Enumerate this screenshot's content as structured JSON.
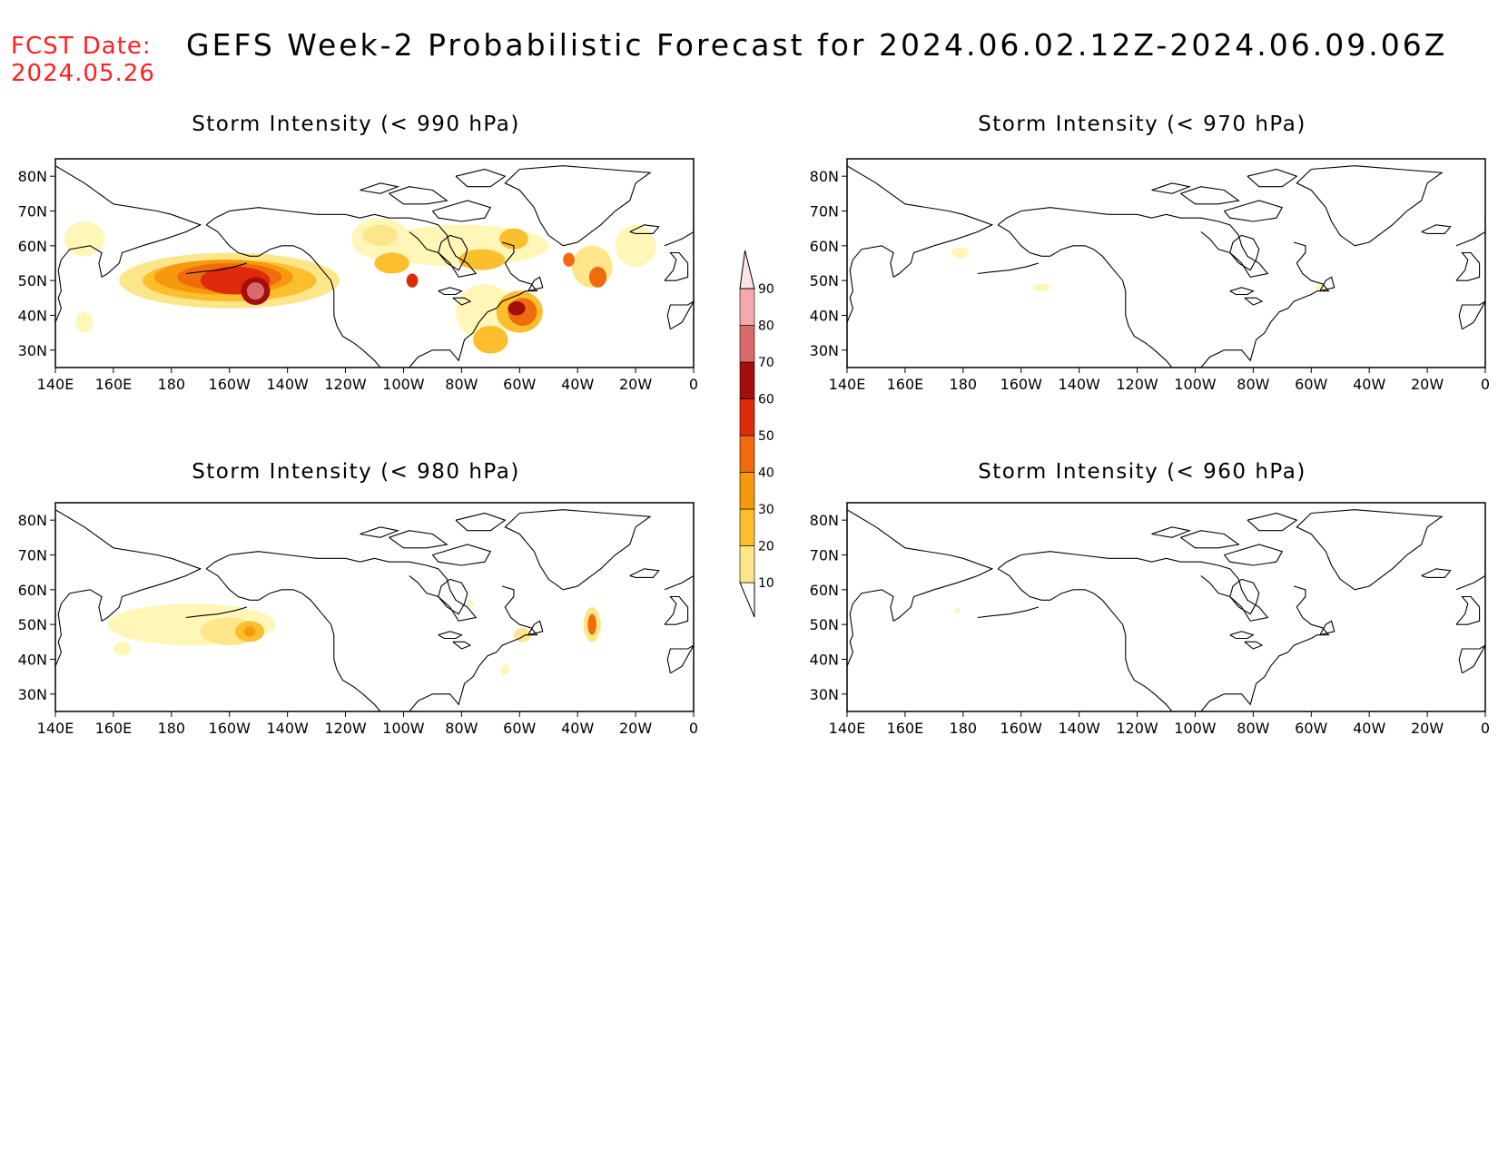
{
  "header": {
    "fcst_label": "FCST Date:",
    "fcst_date": "2024.05.26",
    "title": "GEFS Week-2 Probabilistic Forecast for 2024.06.02.12Z-2024.06.09.06Z"
  },
  "axes": {
    "lat_labels": [
      "80N",
      "70N",
      "60N",
      "50N",
      "40N",
      "30N"
    ],
    "lat_values": [
      80,
      70,
      60,
      50,
      40,
      30
    ],
    "lon_labels": [
      "140E",
      "160E",
      "180",
      "160W",
      "140W",
      "120W",
      "100W",
      "80W",
      "60W",
      "40W",
      "20W",
      "0"
    ],
    "lon_values": [
      140,
      160,
      180,
      200,
      220,
      240,
      260,
      280,
      300,
      320,
      340,
      360
    ],
    "lon_range": [
      140,
      360
    ],
    "lat_range": [
      25,
      85
    ]
  },
  "colorbar": {
    "levels": [
      10,
      20,
      30,
      40,
      50,
      60,
      70,
      80,
      90
    ],
    "labels": [
      "10",
      "20",
      "30",
      "40",
      "50",
      "60",
      "70",
      "80",
      "90"
    ],
    "colors": [
      "#fff6b8",
      "#fde68a",
      "#fbbf2e",
      "#f59a0c",
      "#ef6b0e",
      "#dd2a0b",
      "#a50d0d",
      "#d86a6a",
      "#f4a9ad",
      "#fde4e4"
    ]
  },
  "panels": [
    {
      "id": "p990",
      "title": "Storm Intensity (< 990 hPa)",
      "blobs": [
        {
          "lon": 200,
          "lat": 50,
          "rx": 38,
          "ry": 8,
          "p": 25
        },
        {
          "lon": 200,
          "lat": 50,
          "rx": 30,
          "ry": 6,
          "p": 35
        },
        {
          "lon": 198,
          "lat": 51,
          "rx": 24,
          "ry": 5,
          "p": 45
        },
        {
          "lon": 200,
          "lat": 51,
          "rx": 18,
          "ry": 4,
          "p": 55
        },
        {
          "lon": 202,
          "lat": 50,
          "rx": 12,
          "ry": 4,
          "p": 65
        },
        {
          "lon": 209,
          "lat": 47,
          "rx": 5,
          "ry": 4,
          "p": 75
        },
        {
          "lon": 209,
          "lat": 47,
          "rx": 3,
          "ry": 2.5,
          "p": 85
        },
        {
          "lon": 150,
          "lat": 62,
          "rx": 7,
          "ry": 5,
          "p": 15
        },
        {
          "lon": 150,
          "lat": 38,
          "rx": 3,
          "ry": 3,
          "p": 15
        },
        {
          "lon": 252,
          "lat": 62,
          "rx": 10,
          "ry": 6,
          "p": 15
        },
        {
          "lon": 252,
          "lat": 63,
          "rx": 6,
          "ry": 3,
          "p": 25
        },
        {
          "lon": 256,
          "lat": 55,
          "rx": 6,
          "ry": 3,
          "p": 35
        },
        {
          "lon": 263,
          "lat": 50,
          "rx": 2,
          "ry": 2,
          "p": 60
        },
        {
          "lon": 280,
          "lat": 60,
          "rx": 30,
          "ry": 6,
          "p": 15
        },
        {
          "lon": 287,
          "lat": 56,
          "rx": 8,
          "ry": 3,
          "p": 35
        },
        {
          "lon": 298,
          "lat": 62,
          "rx": 5,
          "ry": 3,
          "p": 30
        },
        {
          "lon": 288,
          "lat": 41,
          "rx": 10,
          "ry": 8,
          "p": 15
        },
        {
          "lon": 300,
          "lat": 41,
          "rx": 8,
          "ry": 6,
          "p": 35
        },
        {
          "lon": 301,
          "lat": 41,
          "rx": 5,
          "ry": 4,
          "p": 55
        },
        {
          "lon": 299,
          "lat": 42,
          "rx": 3,
          "ry": 2,
          "p": 75
        },
        {
          "lon": 290,
          "lat": 33,
          "rx": 6,
          "ry": 4,
          "p": 30
        },
        {
          "lon": 325,
          "lat": 54,
          "rx": 7,
          "ry": 6,
          "p": 20
        },
        {
          "lon": 327,
          "lat": 51,
          "rx": 3,
          "ry": 3,
          "p": 55
        },
        {
          "lon": 340,
          "lat": 60,
          "rx": 7,
          "ry": 6,
          "p": 15
        },
        {
          "lon": 317,
          "lat": 56,
          "rx": 2,
          "ry": 2,
          "p": 55
        }
      ]
    },
    {
      "id": "p970",
      "title": "Storm Intensity (< 970 hPa)",
      "blobs": [
        {
          "lon": 179,
          "lat": 58,
          "rx": 3,
          "ry": 1.5,
          "p": 15
        },
        {
          "lon": 207,
          "lat": 48,
          "rx": 3,
          "ry": 1.2,
          "p": 15
        },
        {
          "lon": 303,
          "lat": 48,
          "rx": 1.5,
          "ry": 1.2,
          "p": 15
        }
      ]
    },
    {
      "id": "p980",
      "title": "Storm Intensity (< 980 hPa)",
      "blobs": [
        {
          "lon": 187,
          "lat": 50,
          "rx": 29,
          "ry": 6,
          "p": 15
        },
        {
          "lon": 200,
          "lat": 48,
          "rx": 10,
          "ry": 4,
          "p": 20
        },
        {
          "lon": 207,
          "lat": 48,
          "rx": 5,
          "ry": 3,
          "p": 35
        },
        {
          "lon": 207,
          "lat": 48,
          "rx": 2,
          "ry": 1.5,
          "p": 45
        },
        {
          "lon": 163,
          "lat": 43,
          "rx": 3,
          "ry": 2,
          "p": 15
        },
        {
          "lon": 325,
          "lat": 50,
          "rx": 3,
          "ry": 5,
          "p": 20
        },
        {
          "lon": 325,
          "lat": 50,
          "rx": 1.5,
          "ry": 3,
          "p": 55
        },
        {
          "lon": 301,
          "lat": 47,
          "rx": 3,
          "ry": 2,
          "p": 25
        },
        {
          "lon": 295,
          "lat": 37,
          "rx": 1.5,
          "ry": 1.5,
          "p": 15
        },
        {
          "lon": 283,
          "lat": 56,
          "rx": 1,
          "ry": 1,
          "p": 15
        }
      ]
    },
    {
      "id": "p960",
      "title": "Storm Intensity (< 960 hPa)",
      "blobs": [
        {
          "lon": 178,
          "lat": 54,
          "rx": 1,
          "ry": 0.8,
          "p": 15
        }
      ]
    }
  ]
}
